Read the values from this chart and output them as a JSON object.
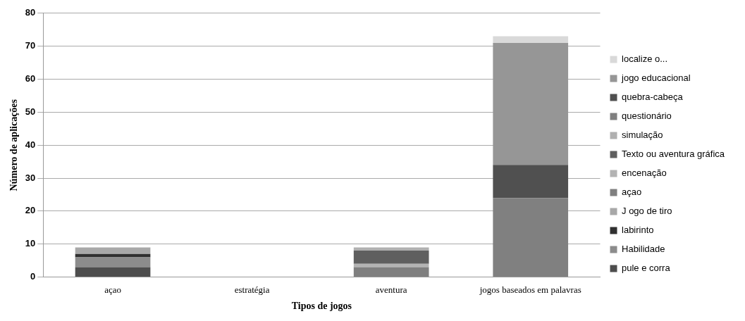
{
  "chart_data": {
    "type": "bar",
    "stacked": true,
    "xlabel": "Tipos de jogos",
    "ylabel": "Número de aplicações",
    "categories": [
      "açao",
      "estratégia",
      "aventura",
      "jogos baseados em palavras"
    ],
    "ylim": [
      0,
      80
    ],
    "yticks": [
      0,
      10,
      20,
      30,
      40,
      50,
      60,
      70,
      80
    ],
    "grid": "y",
    "legend": "right",
    "series": [
      {
        "name": "pule e corra",
        "color": "#4d4d4d",
        "values": [
          3,
          0,
          0,
          0
        ]
      },
      {
        "name": "Habilidade",
        "color": "#8c8c8c",
        "values": [
          3,
          0,
          0,
          0
        ]
      },
      {
        "name": "labirinto",
        "color": "#303030",
        "values": [
          1,
          0,
          0,
          0
        ]
      },
      {
        "name": "J ogo de tiro",
        "color": "#a8a8a8",
        "values": [
          2,
          0,
          0,
          0
        ]
      },
      {
        "name": "açao",
        "color": "#7f7f7f",
        "values": [
          0,
          0,
          3,
          0
        ]
      },
      {
        "name": "encenação",
        "color": "#b3b3b3",
        "values": [
          0,
          0,
          1,
          0
        ]
      },
      {
        "name": "Texto ou aventura gráfica",
        "color": "#5f5f5f",
        "values": [
          0,
          0,
          4,
          0
        ]
      },
      {
        "name": "simulação",
        "color": "#b0b0b0",
        "values": [
          0,
          0,
          1,
          0
        ]
      },
      {
        "name": "questionário",
        "color": "#808080",
        "values": [
          0,
          0,
          0,
          24
        ]
      },
      {
        "name": "quebra-cabeça",
        "color": "#505050",
        "values": [
          0,
          0,
          0,
          10
        ]
      },
      {
        "name": "jogo educacional",
        "color": "#969696",
        "values": [
          0,
          0,
          0,
          37
        ]
      },
      {
        "name": "localize o...",
        "color": "#d9d9d9",
        "values": [
          0,
          0,
          0,
          2
        ]
      }
    ]
  }
}
